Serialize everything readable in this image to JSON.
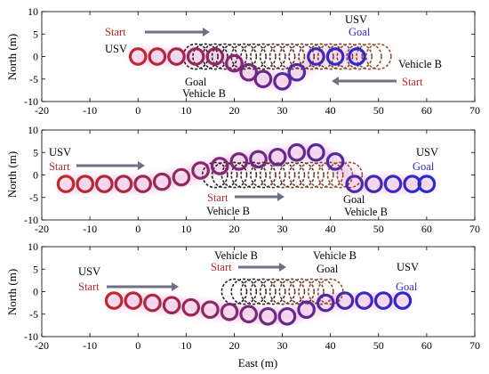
{
  "chart_data": [
    {
      "type": "scatter",
      "xlim": [
        -20,
        70
      ],
      "ylim": [
        -10,
        10
      ],
      "xticks": [
        -20,
        -10,
        0,
        10,
        20,
        30,
        40,
        50,
        60,
        70
      ],
      "yticks": [
        -10,
        -5,
        0,
        5,
        10
      ],
      "xlabel": "",
      "ylabel": "North (m)",
      "grid": false,
      "series": [
        {
          "name": "USV",
          "x": [
            0,
            4,
            8,
            12,
            16,
            20,
            23,
            26,
            30,
            33,
            37,
            41,
            45.5
          ],
          "y": [
            0,
            0,
            0,
            0,
            0,
            -1.5,
            -3.5,
            -5,
            -5.5,
            -3.5,
            0,
            0,
            0
          ]
        },
        {
          "name": "Vehicle B",
          "x": [
            50,
            48,
            46,
            44,
            42,
            40,
            38,
            36,
            34,
            32,
            30,
            28,
            26,
            24,
            22,
            20,
            18,
            16,
            14,
            12
          ],
          "y": [
            0,
            0,
            0,
            0,
            0,
            0,
            0,
            0,
            0,
            0,
            0,
            0,
            0,
            0,
            0,
            0,
            0,
            0,
            0,
            0
          ]
        }
      ],
      "annotations": {
        "start_left": "Start",
        "usv_left": "USV",
        "usv_goal_name": "USV",
        "usv_goal": "Goal",
        "vb_goal": "Goal",
        "vb_goal_name": "Vehicle B",
        "vb_name": "Vehicle B",
        "vb_start": "Start"
      }
    },
    {
      "type": "scatter",
      "xlim": [
        -20,
        70
      ],
      "ylim": [
        -10,
        10
      ],
      "xticks": [
        -20,
        -10,
        0,
        10,
        20,
        30,
        40,
        50,
        60,
        70
      ],
      "yticks": [
        -10,
        -5,
        0,
        5,
        10
      ],
      "xlabel": "",
      "ylabel": "North (m)",
      "grid": false,
      "series": [
        {
          "name": "USV",
          "x": [
            -15,
            -11,
            -7,
            -3,
            1,
            5,
            9,
            13,
            17,
            21,
            25,
            29,
            33,
            37,
            41,
            45,
            49,
            53,
            57,
            60
          ],
          "y": [
            -2,
            -2,
            -2,
            -2,
            -2,
            -1.5,
            -0.5,
            1,
            2,
            3,
            3.5,
            4,
            5,
            5,
            3,
            -2,
            -2,
            -2,
            -2,
            -2
          ]
        },
        {
          "name": "Vehicle B",
          "x": [
            16,
            18,
            20,
            22,
            24,
            26,
            28,
            30,
            32,
            34,
            36,
            38,
            40,
            42,
            44
          ],
          "y": [
            0,
            0,
            0,
            0,
            0,
            0,
            0,
            0,
            0,
            0,
            0,
            0,
            0,
            0,
            0
          ]
        }
      ],
      "annotations": {
        "usv_name": "USV",
        "usv_start": "Start",
        "usv_goal_name": "USV",
        "usv_goal": "Goal",
        "vb_start": "Start",
        "vb_name": "Vehicle B",
        "vb_goal": "Goal",
        "vb_goal_name": "Vehicle B"
      }
    },
    {
      "type": "scatter",
      "xlim": [
        -20,
        70
      ],
      "ylim": [
        -10,
        10
      ],
      "xticks": [
        -20,
        -10,
        0,
        10,
        20,
        30,
        40,
        50,
        60,
        70
      ],
      "yticks": [
        -10,
        -5,
        0,
        5,
        10
      ],
      "xlabel": "East (m)",
      "ylabel": "North (m)",
      "grid": false,
      "series": [
        {
          "name": "USV",
          "x": [
            -5,
            -1,
            3,
            7,
            11,
            15,
            19,
            23,
            27,
            31,
            35,
            39,
            43,
            47,
            51,
            55
          ],
          "y": [
            -2,
            -2,
            -2.5,
            -3,
            -3.5,
            -4,
            -4.5,
            -5,
            -5.5,
            -5.5,
            -4,
            -2.5,
            -2,
            -2,
            -2,
            -2
          ]
        },
        {
          "name": "Vehicle B",
          "x": [
            20,
            22,
            24,
            26,
            28,
            30,
            32,
            34,
            36,
            38,
            40
          ],
          "y": [
            0,
            0,
            0,
            0,
            0,
            0,
            0,
            0,
            0,
            0,
            0
          ]
        }
      ],
      "annotations": {
        "usv_name": "USV",
        "usv_start": "Start",
        "vb_name": "Vehicle B",
        "vb_start": "Start",
        "vb_goal_name": "Vehicle B",
        "vb_goal": "Goal",
        "usv_goal_name": "USV",
        "usv_goal": "Goal"
      }
    }
  ],
  "colors": {
    "start_red": "#c0282a",
    "goal_blue": "#2a2ad0",
    "arrow_gray": "#6f6f86",
    "vehicle_b_dark": "#1a1a1a",
    "vehicle_b_light": "#9a4a2a",
    "glow": "#e8a0d8"
  }
}
